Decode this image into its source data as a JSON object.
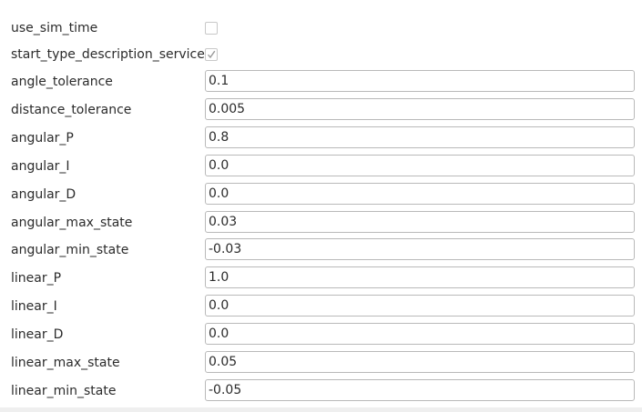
{
  "parameters": {
    "use_sim_time": {
      "label": "use_sim_time",
      "checked": false
    },
    "start_type_description_service": {
      "label": "start_type_description_service",
      "checked": true
    },
    "fields": [
      {
        "label": "angle_tolerance",
        "value": "0.1"
      },
      {
        "label": "distance_tolerance",
        "value": "0.005"
      },
      {
        "label": "angular_P",
        "value": "0.8"
      },
      {
        "label": "angular_I",
        "value": "0.0"
      },
      {
        "label": "angular_D",
        "value": "0.0"
      },
      {
        "label": "angular_max_state",
        "value": "0.03"
      },
      {
        "label": "angular_min_state",
        "value": "-0.03"
      },
      {
        "label": "linear_P",
        "value": "1.0"
      },
      {
        "label": "linear_I",
        "value": "0.0"
      },
      {
        "label": "linear_D",
        "value": "0.0"
      },
      {
        "label": "linear_max_state",
        "value": "0.05"
      },
      {
        "label": "linear_min_state",
        "value": "-0.05"
      }
    ]
  },
  "colors": {
    "checkmark": "#9a9a9a",
    "field_border": "#b9b9b9",
    "panel_background": "#ffffff"
  }
}
